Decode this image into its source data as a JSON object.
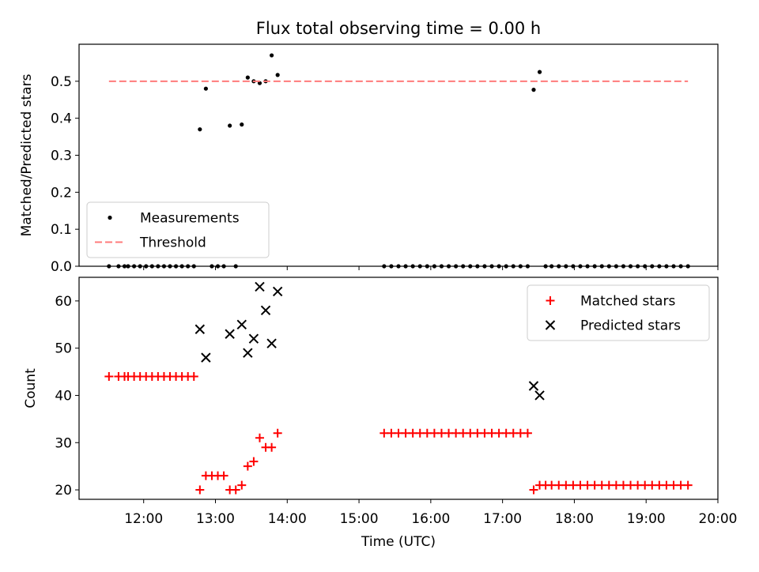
{
  "chart_data": {
    "title": "Flux total observing time = 0.00 h",
    "xlabel": "Time (UTC)",
    "x_unit": "hours UTC",
    "xlim": [
      "11:06",
      "20:00"
    ],
    "xticks": [
      "12:00",
      "13:00",
      "14:00",
      "15:00",
      "16:00",
      "17:00",
      "18:00",
      "19:00",
      "20:00"
    ],
    "panels": [
      {
        "type": "scatter",
        "ylabel": "Matched/Predicted stars",
        "ylim": [
          0,
          0.6
        ],
        "yticks": [
          "0.0",
          "0.1",
          "0.2",
          "0.3",
          "0.4",
          "0.5"
        ],
        "legend": {
          "position": "lower-left",
          "entries": [
            "Measurements",
            "Threshold"
          ]
        },
        "series": [
          {
            "name": "Measurements",
            "color": "#000000",
            "marker": "dot",
            "points": [
              [
                "11:31",
                0.0
              ],
              [
                "11:39",
                0.0
              ],
              [
                "11:44",
                0.0
              ],
              [
                "11:47",
                0.0
              ],
              [
                "11:52",
                0.0
              ],
              [
                "11:57",
                0.0
              ],
              [
                "12:02",
                0.0
              ],
              [
                "12:07",
                0.0
              ],
              [
                "12:12",
                0.0
              ],
              [
                "12:17",
                0.0
              ],
              [
                "12:22",
                0.0
              ],
              [
                "12:27",
                0.0
              ],
              [
                "12:32",
                0.0
              ],
              [
                "12:37",
                0.0
              ],
              [
                "12:42",
                0.0
              ],
              [
                "12:47",
                0.37
              ],
              [
                "12:52",
                0.48
              ],
              [
                "12:57",
                0.0
              ],
              [
                "13:02",
                0.0
              ],
              [
                "13:07",
                0.0
              ],
              [
                "13:12",
                0.38
              ],
              [
                "13:17",
                0.0
              ],
              [
                "13:22",
                0.383
              ],
              [
                "13:27",
                0.51
              ],
              [
                "13:32",
                0.5
              ],
              [
                "13:37",
                0.495
              ],
              [
                "13:42",
                0.5
              ],
              [
                "13:47",
                0.57
              ],
              [
                "13:52",
                0.517
              ],
              [
                "15:21",
                0.0
              ],
              [
                "15:27",
                0.0
              ],
              [
                "15:33",
                0.0
              ],
              [
                "15:39",
                0.0
              ],
              [
                "15:45",
                0.0
              ],
              [
                "15:51",
                0.0
              ],
              [
                "15:57",
                0.0
              ],
              [
                "16:03",
                0.0
              ],
              [
                "16:09",
                0.0
              ],
              [
                "16:15",
                0.0
              ],
              [
                "16:21",
                0.0
              ],
              [
                "16:27",
                0.0
              ],
              [
                "16:33",
                0.0
              ],
              [
                "16:39",
                0.0
              ],
              [
                "16:45",
                0.0
              ],
              [
                "16:51",
                0.0
              ],
              [
                "16:57",
                0.0
              ],
              [
                "17:03",
                0.0
              ],
              [
                "17:09",
                0.0
              ],
              [
                "17:15",
                0.0
              ],
              [
                "17:21",
                0.0
              ],
              [
                "17:26",
                0.477
              ],
              [
                "17:31",
                0.525
              ],
              [
                "17:36",
                0.0
              ],
              [
                "17:41",
                0.0
              ],
              [
                "17:47",
                0.0
              ],
              [
                "17:53",
                0.0
              ],
              [
                "17:59",
                0.0
              ],
              [
                "18:05",
                0.0
              ],
              [
                "18:11",
                0.0
              ],
              [
                "18:17",
                0.0
              ],
              [
                "18:23",
                0.0
              ],
              [
                "18:29",
                0.0
              ],
              [
                "18:35",
                0.0
              ],
              [
                "18:41",
                0.0
              ],
              [
                "18:47",
                0.0
              ],
              [
                "18:53",
                0.0
              ],
              [
                "18:59",
                0.0
              ],
              [
                "19:05",
                0.0
              ],
              [
                "19:11",
                0.0
              ],
              [
                "19:17",
                0.0
              ],
              [
                "19:23",
                0.0
              ],
              [
                "19:29",
                0.0
              ],
              [
                "19:35",
                0.0
              ]
            ]
          },
          {
            "name": "Threshold",
            "color": "#ff7b7b",
            "style": "dashed",
            "points": [
              [
                "11:31",
                0.5
              ],
              [
                "19:35",
                0.5
              ]
            ]
          }
        ]
      },
      {
        "type": "scatter",
        "ylabel": "Count",
        "ylim": [
          18,
          65
        ],
        "yticks": [
          "20",
          "30",
          "40",
          "50",
          "60"
        ],
        "legend": {
          "position": "upper-right",
          "entries": [
            "Matched stars",
            "Predicted stars"
          ]
        },
        "series": [
          {
            "name": "Matched stars",
            "color": "#ff0000",
            "marker": "plus",
            "points": [
              [
                "11:31",
                44
              ],
              [
                "11:39",
                44
              ],
              [
                "11:44",
                44
              ],
              [
                "11:47",
                44
              ],
              [
                "11:52",
                44
              ],
              [
                "11:57",
                44
              ],
              [
                "12:02",
                44
              ],
              [
                "12:07",
                44
              ],
              [
                "12:12",
                44
              ],
              [
                "12:17",
                44
              ],
              [
                "12:22",
                44
              ],
              [
                "12:27",
                44
              ],
              [
                "12:32",
                44
              ],
              [
                "12:37",
                44
              ],
              [
                "12:42",
                44
              ],
              [
                "12:47",
                20
              ],
              [
                "12:52",
                23
              ],
              [
                "12:57",
                23
              ],
              [
                "13:02",
                23
              ],
              [
                "13:07",
                23
              ],
              [
                "13:12",
                20
              ],
              [
                "13:17",
                20
              ],
              [
                "13:22",
                21
              ],
              [
                "13:27",
                25
              ],
              [
                "13:32",
                26
              ],
              [
                "13:37",
                31
              ],
              [
                "13:42",
                29
              ],
              [
                "13:47",
                29
              ],
              [
                "13:52",
                32
              ],
              [
                "15:21",
                32
              ],
              [
                "15:27",
                32
              ],
              [
                "15:33",
                32
              ],
              [
                "15:39",
                32
              ],
              [
                "15:45",
                32
              ],
              [
                "15:51",
                32
              ],
              [
                "15:57",
                32
              ],
              [
                "16:03",
                32
              ],
              [
                "16:09",
                32
              ],
              [
                "16:15",
                32
              ],
              [
                "16:21",
                32
              ],
              [
                "16:27",
                32
              ],
              [
                "16:33",
                32
              ],
              [
                "16:39",
                32
              ],
              [
                "16:45",
                32
              ],
              [
                "16:51",
                32
              ],
              [
                "16:57",
                32
              ],
              [
                "17:03",
                32
              ],
              [
                "17:09",
                32
              ],
              [
                "17:15",
                32
              ],
              [
                "17:21",
                32
              ],
              [
                "17:26",
                20
              ],
              [
                "17:31",
                21
              ],
              [
                "17:36",
                21
              ],
              [
                "17:41",
                21
              ],
              [
                "17:47",
                21
              ],
              [
                "17:53",
                21
              ],
              [
                "17:59",
                21
              ],
              [
                "18:05",
                21
              ],
              [
                "18:11",
                21
              ],
              [
                "18:17",
                21
              ],
              [
                "18:23",
                21
              ],
              [
                "18:29",
                21
              ],
              [
                "18:35",
                21
              ],
              [
                "18:41",
                21
              ],
              [
                "18:47",
                21
              ],
              [
                "18:53",
                21
              ],
              [
                "18:59",
                21
              ],
              [
                "19:05",
                21
              ],
              [
                "19:11",
                21
              ],
              [
                "19:17",
                21
              ],
              [
                "19:23",
                21
              ],
              [
                "19:29",
                21
              ],
              [
                "19:35",
                21
              ]
            ]
          },
          {
            "name": "Predicted stars",
            "color": "#000000",
            "marker": "x",
            "points": [
              [
                "12:47",
                54
              ],
              [
                "12:52",
                48
              ],
              [
                "13:12",
                53
              ],
              [
                "13:22",
                55
              ],
              [
                "13:27",
                49
              ],
              [
                "13:32",
                52
              ],
              [
                "13:37",
                63
              ],
              [
                "13:42",
                58
              ],
              [
                "13:47",
                51
              ],
              [
                "13:52",
                62
              ],
              [
                "17:26",
                42
              ],
              [
                "17:31",
                40
              ]
            ]
          }
        ]
      }
    ]
  }
}
